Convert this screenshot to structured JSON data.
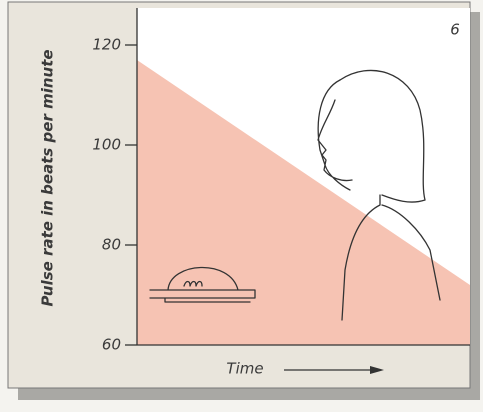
{
  "chart_data": {
    "type": "area",
    "annotation": "6",
    "x_label": "Time",
    "y_label": "Pulse rate in beats per minute",
    "categories": [
      null,
      null
    ],
    "values": [
      117,
      72
    ],
    "color": "#f6c3b3",
    "ylim": [
      60,
      127.4
    ],
    "yticks": [
      60,
      80,
      100,
      120
    ]
  }
}
